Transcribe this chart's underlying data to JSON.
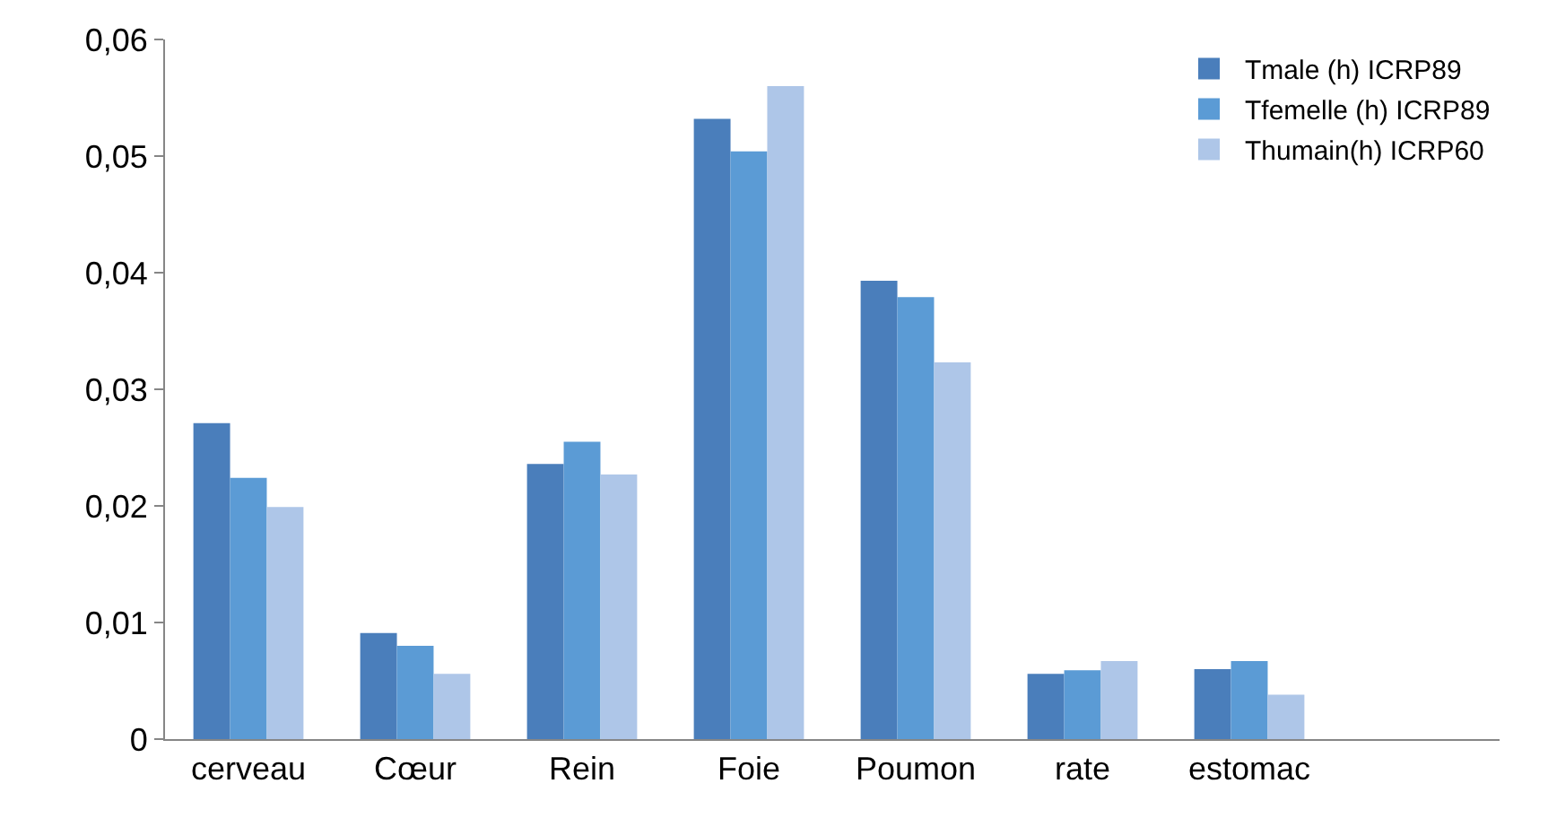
{
  "chart_data": {
    "type": "bar",
    "categories": [
      "cerveau",
      "Cœur",
      "Rein",
      "Foie",
      "Poumon",
      "rate",
      "estomac",
      null
    ],
    "series": [
      {
        "name": "Tmale (h) ICRP89",
        "color": "#4a7ebb",
        "values": [
          0.0271,
          0.0091,
          0.0236,
          0.0532,
          0.0393,
          0.0056,
          0.006,
          null
        ]
      },
      {
        "name": "Tfemelle (h) ICRP89",
        "color": "#5b9bd5",
        "values": [
          0.0224,
          0.008,
          0.0255,
          0.0504,
          0.0379,
          0.0059,
          0.0067,
          null
        ]
      },
      {
        "name": "Thumain(h) ICRP60",
        "color": "#aec6e8",
        "values": [
          0.0199,
          0.0056,
          0.0227,
          0.056,
          0.0323,
          0.0067,
          0.0038,
          null
        ]
      }
    ],
    "ylim": [
      0,
      0.06
    ],
    "yticks": [
      0,
      {
        "value": 0.01,
        "label": "0,01"
      },
      {
        "value": 0.02,
        "label": "0,02"
      },
      {
        "value": 0.03,
        "label": "0,03"
      },
      {
        "value": 0.04,
        "label": "0,04"
      },
      {
        "value": 0.05,
        "label": "0,05"
      },
      {
        "value": 0.06,
        "label": "0,06"
      }
    ],
    "legend": "top right"
  }
}
